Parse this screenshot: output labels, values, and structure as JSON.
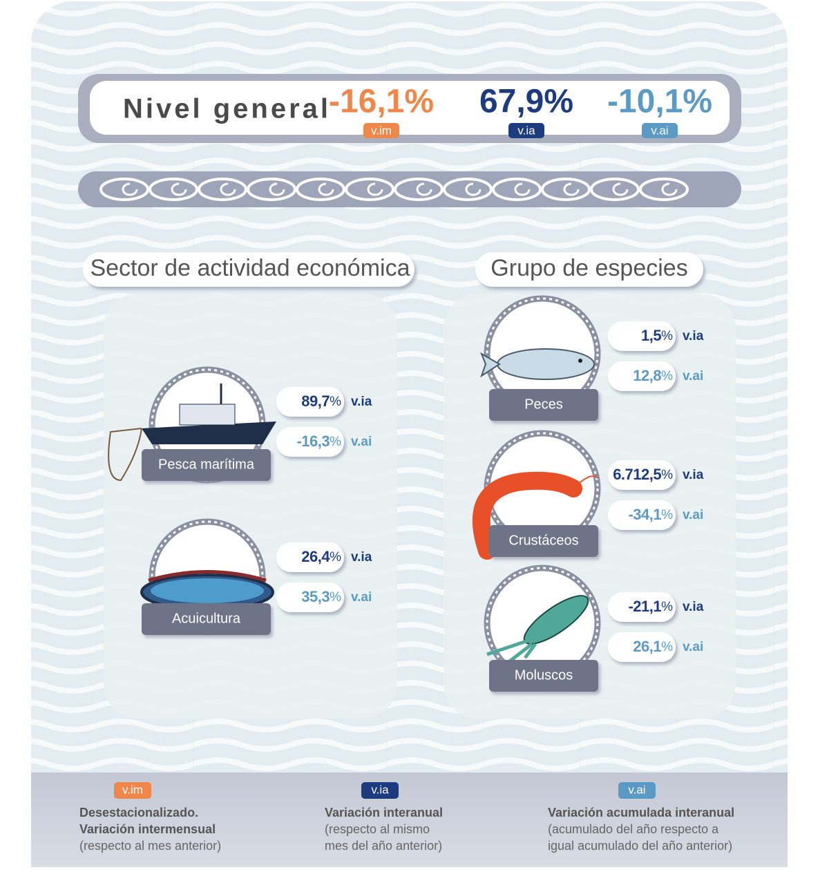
{
  "header": {
    "title": "Nivel general",
    "metrics": [
      {
        "value": "-16,1%",
        "tag": "v.im",
        "color": "#f0874a"
      },
      {
        "value": "67,9%",
        "tag": "v.ia",
        "color": "#1d3c80"
      },
      {
        "value": "-10,1%",
        "tag": "v.ai",
        "color": "#5b9ac5"
      }
    ]
  },
  "sectors": {
    "title": "Sector de actividad económica",
    "items": [
      {
        "label": "Pesca marítima",
        "metrics": [
          {
            "number": "89,7",
            "unit": "%",
            "tag": "v.ia",
            "color": "#1d3c80"
          },
          {
            "number": "-16,3",
            "unit": "%",
            "tag": "v.ai",
            "color": "#5b9ac5"
          }
        ]
      },
      {
        "label": "Acuicultura",
        "metrics": [
          {
            "number": "26,4",
            "unit": "%",
            "tag": "v.ia",
            "color": "#1d3c80"
          },
          {
            "number": "35,3",
            "unit": "%",
            "tag": "v.ai",
            "color": "#5b9ac5"
          }
        ]
      }
    ]
  },
  "species": {
    "title": "Grupo de especies",
    "items": [
      {
        "label": "Peces",
        "metrics": [
          {
            "number": "1,5",
            "unit": "%",
            "tag": "v.ia",
            "color": "#1d3c80"
          },
          {
            "number": "12,8",
            "unit": "%",
            "tag": "v.ai",
            "color": "#5b9ac5"
          }
        ]
      },
      {
        "label": "Crustáceos",
        "metrics": [
          {
            "number": "6.712,5",
            "unit": "%",
            "tag": "v.ia",
            "color": "#1d3c80"
          },
          {
            "number": "-34,1",
            "unit": "%",
            "tag": "v.ai",
            "color": "#5b9ac5"
          }
        ]
      },
      {
        "label": "Moluscos",
        "metrics": [
          {
            "number": "-21,1",
            "unit": "%",
            "tag": "v.ia",
            "color": "#1d3c80"
          },
          {
            "number": "26,1",
            "unit": "%",
            "tag": "v.ai",
            "color": "#5b9ac5"
          }
        ]
      }
    ]
  },
  "legend": [
    {
      "tag": "v.im",
      "color": "#f0874a",
      "bold": [
        "Desestacionalizado.",
        "Variación intermensual"
      ],
      "text": [
        "(respecto al mes anterior)"
      ]
    },
    {
      "tag": "v.ia",
      "color": "#1d3c80",
      "bold": [
        "Variación interanual"
      ],
      "text": [
        "(respecto al mismo",
        "mes del año anterior)"
      ]
    },
    {
      "tag": "v.ai",
      "color": "#5b9ac5",
      "bold": [
        "Variación acumulada interanual"
      ],
      "text": [
        "(acumulado del año respecto a",
        "igual acumulado del año anterior)"
      ]
    }
  ]
}
